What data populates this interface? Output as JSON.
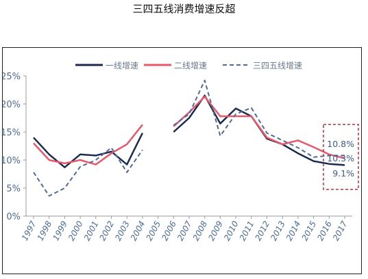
{
  "title": "三四五线消费增速反超",
  "chart_data": {
    "type": "line",
    "x": [
      "1997",
      "1998",
      "1999",
      "2000",
      "2001",
      "2002",
      "2003",
      "2004",
      "2005",
      "2006",
      "2007",
      "2008",
      "2009",
      "2010",
      "2011",
      "2012",
      "2013",
      "2014",
      "2015",
      "2016",
      "2017"
    ],
    "ylim": [
      0,
      25
    ],
    "yticks": [
      "0%",
      "5%",
      "10%",
      "15%",
      "20%",
      "25%"
    ],
    "legend_position": "top-center",
    "grid": false,
    "series": [
      {
        "name": "一线增速",
        "color": "#1c2a4f",
        "dash": "solid",
        "values": [
          14.0,
          11.0,
          8.7,
          11.0,
          10.8,
          11.5,
          9.2,
          14.8,
          null,
          15.0,
          17.5,
          21.5,
          16.5,
          19.2,
          17.8,
          13.8,
          12.8,
          11.2,
          9.8,
          9.3,
          9.1
        ]
      },
      {
        "name": "二线增速",
        "color": "#e8576a",
        "dash": "solid",
        "values": [
          13.0,
          10.0,
          9.4,
          10.0,
          9.2,
          11.2,
          12.8,
          16.3,
          null,
          16.0,
          18.5,
          21.3,
          17.8,
          17.8,
          17.8,
          14.0,
          12.8,
          13.5,
          12.3,
          11.0,
          10.3
        ]
      },
      {
        "name": "三四五线增速",
        "color": "#4f6a95",
        "dash": "dashed",
        "values": [
          7.8,
          3.6,
          5.0,
          8.8,
          10.0,
          12.2,
          7.8,
          11.8,
          null,
          16.2,
          18.2,
          24.2,
          14.3,
          18.2,
          19.3,
          14.8,
          13.5,
          12.2,
          10.5,
          10.8,
          10.8
        ]
      }
    ],
    "annotations": [
      "10.8%",
      "10.3%",
      "9.1%"
    ]
  }
}
